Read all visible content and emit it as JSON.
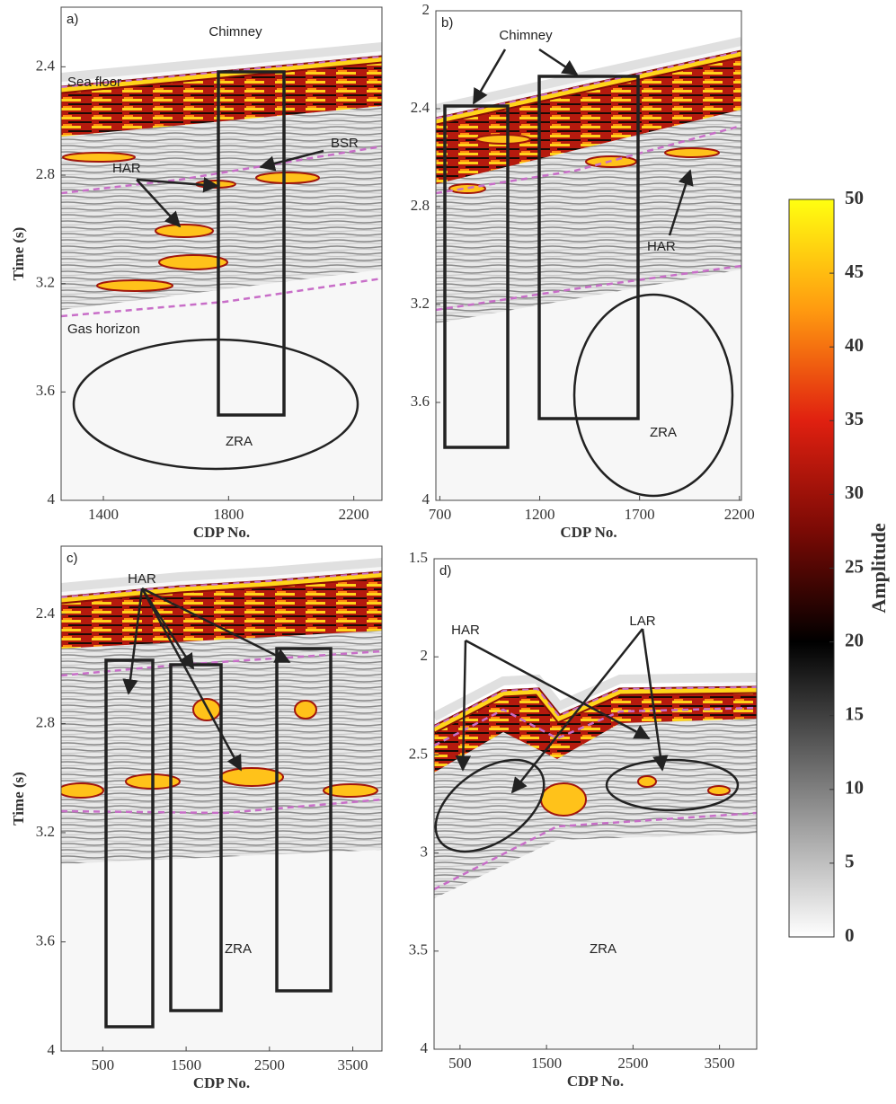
{
  "chart_data": [
    {
      "type": "seismic",
      "label": "a)",
      "xlabel": "CDP No.",
      "ylabel": "Time (s)",
      "xlim": [
        1265,
        2290
      ],
      "ylim": [
        2.18,
        4
      ],
      "invert_y": true,
      "xticks": [
        1400,
        1800,
        2200
      ],
      "yticks": [
        2.4,
        2.8,
        3.2,
        3.6,
        4
      ],
      "annotations": [
        "Sea floor",
        "Chimney",
        "BSR",
        "HAR",
        "Gas horizon",
        "ZRA"
      ]
    },
    {
      "type": "seismic",
      "label": "b)",
      "xlabel": "CDP No.",
      "xlim": [
        680,
        2210
      ],
      "ylim": [
        2,
        4
      ],
      "invert_y": true,
      "xticks": [
        700,
        1200,
        1700,
        2200
      ],
      "yticks": [
        2,
        2.4,
        2.8,
        3.2,
        3.6,
        4
      ],
      "annotations": [
        "Chimney",
        "HAR",
        "ZRA"
      ]
    },
    {
      "type": "seismic",
      "label": "c)",
      "xlabel": "CDP No.",
      "ylabel": "Time (s)",
      "xlim": [
        0,
        3850
      ],
      "ylim": [
        2.15,
        4
      ],
      "invert_y": true,
      "xticks": [
        500,
        1500,
        2500,
        3500
      ],
      "yticks": [
        2.4,
        2.8,
        3.2,
        3.6,
        4
      ],
      "annotations": [
        "HAR",
        "ZRA"
      ]
    },
    {
      "type": "seismic",
      "label": "d)",
      "xlabel": "CDP No.",
      "xlim": [
        200,
        3930
      ],
      "ylim": [
        1.5,
        4
      ],
      "invert_y": true,
      "xticks": [
        500,
        1500,
        2500,
        3500
      ],
      "yticks": [
        1.5,
        2,
        2.5,
        3,
        3.5,
        4
      ],
      "annotations": [
        "HAR",
        "LAR",
        "ZRA"
      ]
    },
    {
      "type": "colorbar",
      "label": "Amplitude",
      "zlim": [
        0,
        50
      ],
      "ticks": [
        0,
        5,
        10,
        15,
        20,
        25,
        30,
        35,
        40,
        45,
        50
      ]
    }
  ]
}
